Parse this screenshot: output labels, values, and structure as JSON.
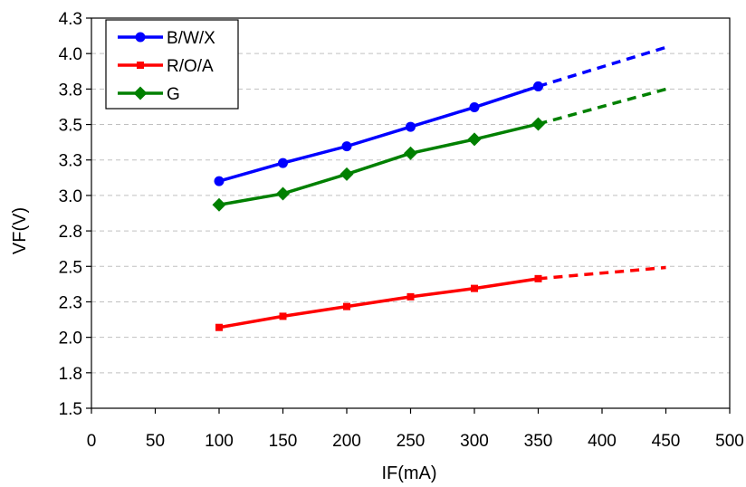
{
  "chart_data": {
    "type": "line",
    "xlabel": "IF(mA)",
    "ylabel": "VF(V)",
    "xlim": [
      0,
      500
    ],
    "ylim": [
      1.5,
      4.3
    ],
    "x_ticks": [
      "0",
      "50",
      "100",
      "150",
      "200",
      "250",
      "300",
      "350",
      "400",
      "450",
      "500"
    ],
    "y_ticks": [
      "1.5",
      "1.8",
      "2.0",
      "2.3",
      "2.5",
      "2.8",
      "3.0",
      "3.3",
      "3.5",
      "3.8",
      "4.0",
      "4.3"
    ],
    "grid": "horizontal dashed",
    "legend_position": "top-left",
    "series": [
      {
        "name": "B/W/X",
        "color": "#0000ff",
        "marker": "circle",
        "x": [
          100,
          150,
          200,
          250,
          300,
          350
        ],
        "values": [
          3.13,
          3.26,
          3.38,
          3.52,
          3.66,
          3.81
        ],
        "extrapolated": {
          "x": [
            350,
            450
          ],
          "values": [
            3.81,
            4.09
          ]
        }
      },
      {
        "name": "R/O/A",
        "color": "#ff0000",
        "marker": "square",
        "x": [
          100,
          150,
          200,
          250,
          300,
          350
        ],
        "values": [
          2.08,
          2.16,
          2.23,
          2.3,
          2.36,
          2.43
        ],
        "extrapolated": {
          "x": [
            350,
            450
          ],
          "values": [
            2.43,
            2.51
          ]
        }
      },
      {
        "name": "G",
        "color": "#008000",
        "marker": "diamond",
        "x": [
          100,
          150,
          200,
          250,
          300,
          350
        ],
        "values": [
          2.96,
          3.04,
          3.18,
          3.33,
          3.43,
          3.54
        ],
        "extrapolated": {
          "x": [
            350,
            450
          ],
          "values": [
            3.54,
            3.79
          ]
        }
      }
    ]
  }
}
